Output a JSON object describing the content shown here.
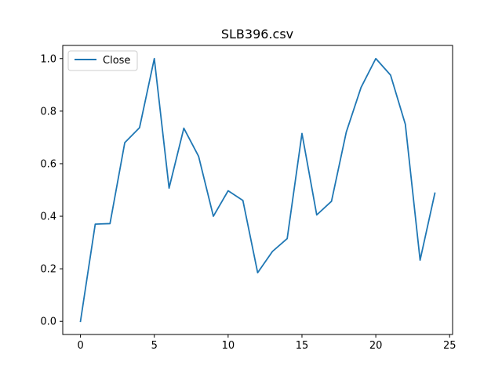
{
  "chart_data": {
    "type": "line",
    "title": "SLB396.csv",
    "xlabel": "",
    "ylabel": "",
    "x": [
      0,
      1,
      2,
      3,
      4,
      5,
      6,
      7,
      8,
      9,
      10,
      11,
      12,
      13,
      14,
      15,
      16,
      17,
      18,
      19,
      20,
      21,
      22,
      23,
      24
    ],
    "series": [
      {
        "name": "Close",
        "color": "#1f77b4",
        "values": [
          0.0,
          0.37,
          0.372,
          0.68,
          0.737,
          1.0,
          0.507,
          0.735,
          0.628,
          0.4,
          0.497,
          0.46,
          0.185,
          0.266,
          0.315,
          0.715,
          0.405,
          0.457,
          0.72,
          0.89,
          1.0,
          0.937,
          0.75,
          0.233,
          0.488
        ]
      }
    ],
    "xlim": [
      -1.2,
      25.2
    ],
    "ylim": [
      -0.05,
      1.05
    ],
    "xticks": [
      0,
      5,
      10,
      15,
      20,
      25
    ],
    "yticks": [
      0.0,
      0.2,
      0.4,
      0.6,
      0.8,
      1.0
    ],
    "xtick_labels": [
      "0",
      "5",
      "10",
      "15",
      "20",
      "25"
    ],
    "ytick_labels": [
      "0.0",
      "0.2",
      "0.4",
      "0.6",
      "0.8",
      "1.0"
    ],
    "grid": false,
    "legend": {
      "position": "top-left",
      "entries": [
        "Close"
      ]
    }
  }
}
